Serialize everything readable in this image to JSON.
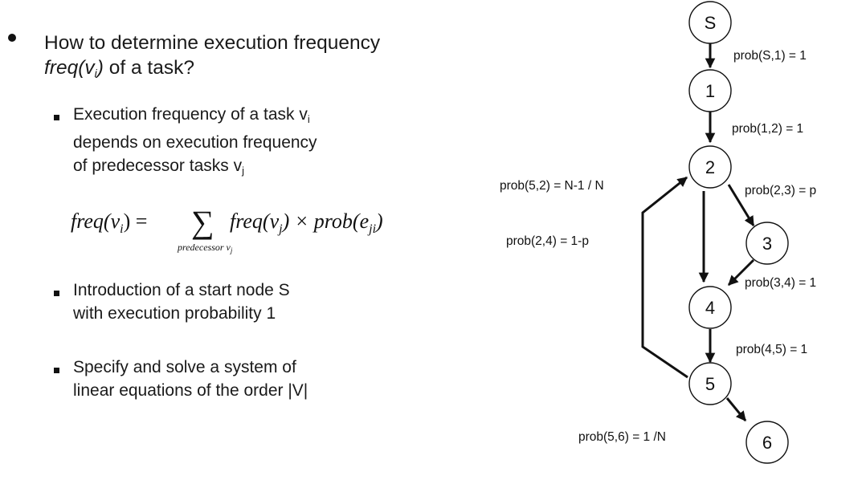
{
  "bullets": {
    "main": {
      "prefix": "How to determine execution frequency ",
      "func": "freq(v",
      "func_sub": "i",
      "func_close": ")",
      "suffix": " of a task?"
    },
    "sub1": {
      "line1_text": "Execution frequency of a task v",
      "line1_sub": "i",
      "line2": "depends on execution frequency",
      "line3_text": "of predecessor tasks v",
      "line3_sub": "j"
    },
    "formula": {
      "lhs": "freq(v",
      "lhs_sub": "i",
      "lhs_close": ") =",
      "sum": "∑",
      "sum_under": "predecessor v",
      "sum_under_sub": "j",
      "term1": "freq(v",
      "term1_sub": "j",
      "term1_close": ") × prob(e",
      "term2_sub": "ji",
      "term2_close": ")"
    },
    "sub2": {
      "line1": "Introduction of a start node S",
      "line2": "with execution probability 1"
    },
    "sub3": {
      "line1": "Specify and solve a system of",
      "line2": "linear equations of the order |V|"
    }
  },
  "graph": {
    "nodes": [
      {
        "id": "S",
        "label": "S"
      },
      {
        "id": "1",
        "label": "1"
      },
      {
        "id": "2",
        "label": "2"
      },
      {
        "id": "3",
        "label": "3"
      },
      {
        "id": "4",
        "label": "4"
      },
      {
        "id": "5",
        "label": "5"
      },
      {
        "id": "6",
        "label": "6"
      }
    ],
    "edge_labels": {
      "s1": "prob(S,1) = 1",
      "e12": "prob(1,2) = 1",
      "e52": "prob(5,2) = N-1 / N",
      "e23": "prob(2,3) = p",
      "e24": "prob(2,4) = 1-p",
      "e34": "prob(3,4) = 1",
      "e45": "prob(4,5) = 1",
      "e56": "prob(5,6) = 1 /N"
    }
  }
}
